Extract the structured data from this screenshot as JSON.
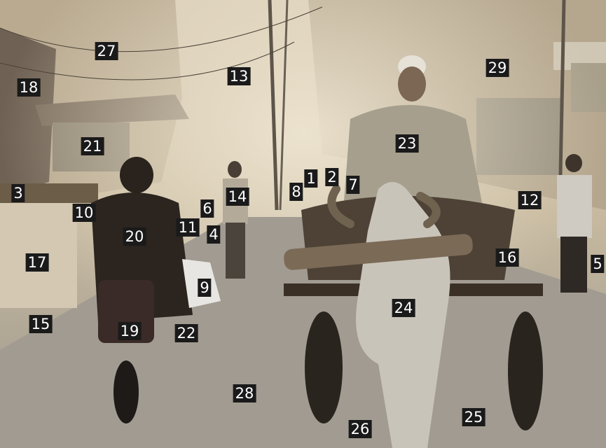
{
  "labels": [
    "27",
    "18",
    "13",
    "29",
    "21",
    "23",
    "1",
    "2",
    "7",
    "8",
    "14",
    "12",
    "3",
    "10",
    "6",
    "11",
    "4",
    "20",
    "16",
    "5",
    "17",
    "9",
    "24",
    "15",
    "19",
    "22",
    "28",
    "25",
    "26"
  ]
}
